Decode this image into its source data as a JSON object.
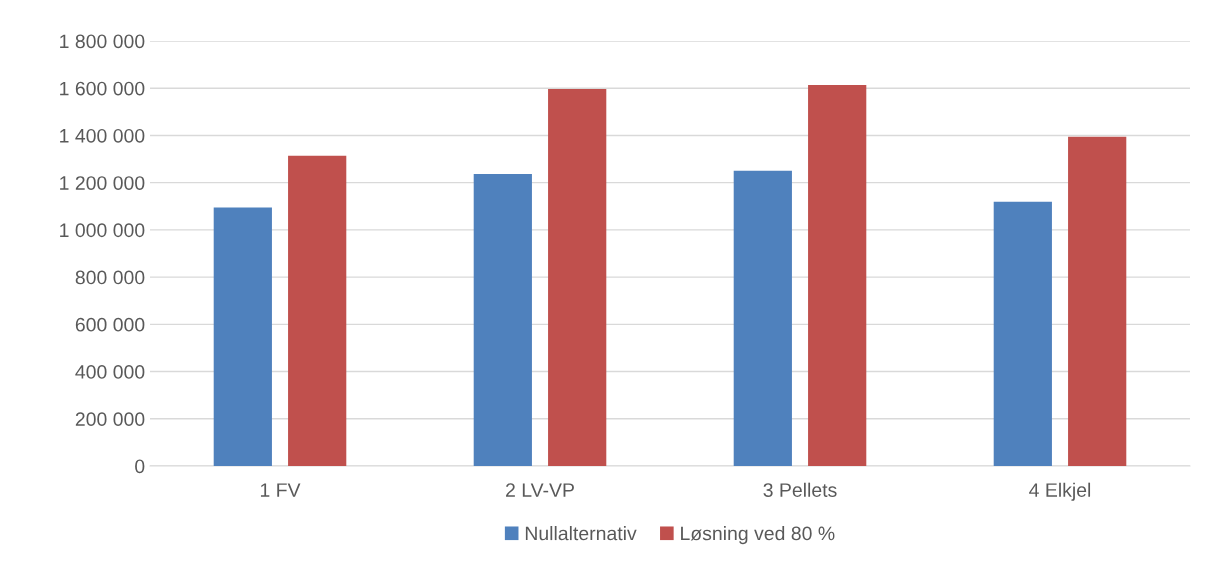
{
  "chart_data": {
    "type": "bar",
    "categories": [
      "1 FV",
      "2 LV-VP",
      "3 Pellets",
      "4 Elkjel"
    ],
    "series": [
      {
        "name": "Nullalternativ",
        "color": "#4f81bd",
        "values": [
          1095000,
          1237000,
          1250000,
          1119000
        ]
      },
      {
        "name": "Løsning ved 80 %",
        "color": "#c0504d",
        "values": [
          1314000,
          1597000,
          1614000,
          1394000
        ]
      }
    ],
    "ylim": [
      0,
      1800000
    ],
    "yticks": [
      0,
      {
        "value": 200000,
        "label": "200 000"
      },
      {
        "value": 400000,
        "label": "400 000"
      },
      {
        "value": 600000,
        "label": "600 000"
      },
      {
        "value": 800000,
        "label": "800 000"
      },
      {
        "value": 1000000,
        "label": "1 000 000"
      },
      {
        "value": 1200000,
        "label": "1 200 000"
      },
      {
        "value": 1400000,
        "label": "1 400 000"
      },
      {
        "value": 1600000,
        "label": "1 600 000"
      },
      {
        "value": 1800000,
        "label": "1 800 000"
      }
    ],
    "grid": "y",
    "legend": "bottom"
  }
}
